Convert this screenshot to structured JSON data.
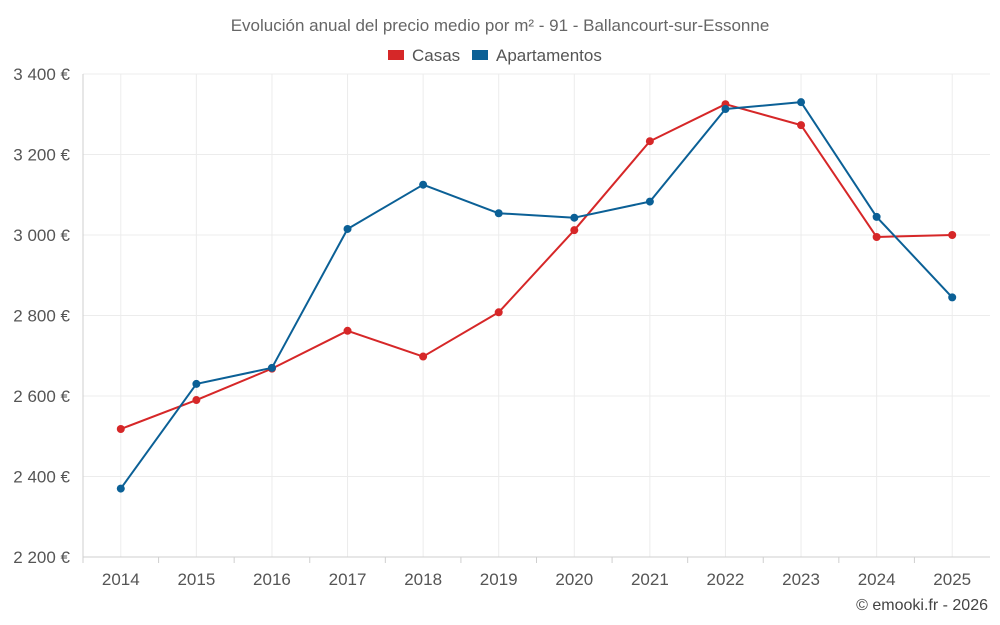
{
  "chart_data": {
    "type": "line",
    "title": "Evolución anual del precio medio por m² - 91 - Ballancourt-sur-Essonne",
    "categories": [
      "2014",
      "2015",
      "2016",
      "2017",
      "2018",
      "2019",
      "2020",
      "2021",
      "2022",
      "2023",
      "2024",
      "2025"
    ],
    "series": [
      {
        "name": "Casas",
        "color": "#d62728",
        "values": [
          2518,
          2590,
          2668,
          2762,
          2698,
          2808,
          3012,
          3233,
          3325,
          3273,
          2995,
          3000
        ]
      },
      {
        "name": "Apartamentos",
        "color": "#0b6096",
        "values": [
          2370,
          2630,
          2670,
          3015,
          3125,
          3054,
          3043,
          3083,
          3313,
          3330,
          3045,
          2845
        ]
      }
    ],
    "ylim": [
      2200,
      3400
    ],
    "yticks": [
      2200,
      2400,
      2600,
      2800,
      3000,
      3200,
      3400
    ],
    "ytick_labels": [
      "2 200 €",
      "2 400 €",
      "2 600 €",
      "2 800 €",
      "3 000 €",
      "3 200 €",
      "3 400 €"
    ],
    "xlabel": "",
    "ylabel": "",
    "grid": true,
    "legend_position": "top-center"
  },
  "credit": "© emooki.fr - 2026"
}
